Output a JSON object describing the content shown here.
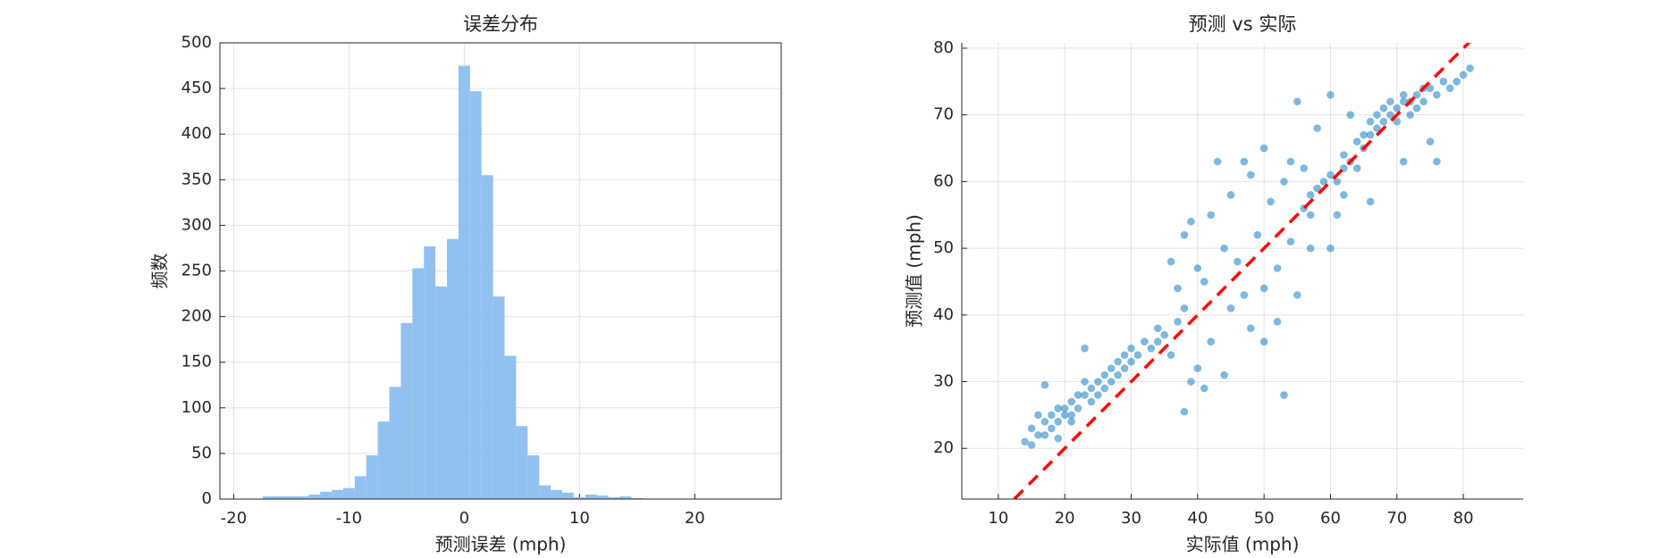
{
  "chart_data": [
    {
      "type": "histogram",
      "title": "误差分布",
      "x_label": "预测误差 (mph)",
      "y_label": "频数",
      "bins": [
        -17.5,
        -16.5,
        -15.5,
        -14.5,
        -13.5,
        -12.5,
        -11.5,
        -10.5,
        -9.5,
        -8.5,
        -7.5,
        -6.5,
        -5.5,
        -4.5,
        -3.5,
        -2.5,
        -1.5,
        -0.5,
        0.5,
        1.5,
        2.5,
        3.5,
        4.5,
        5.5,
        6.5,
        7.5,
        8.5,
        9.5,
        10.5,
        11.5,
        12.5,
        13.5,
        14.5,
        15.5
      ],
      "values": [
        3,
        3,
        3,
        3,
        5,
        8,
        10,
        12,
        25,
        48,
        85,
        123,
        193,
        253,
        277,
        233,
        285,
        475,
        447,
        355,
        222,
        157,
        80,
        48,
        15,
        10,
        7,
        2,
        5,
        4,
        2,
        3,
        1
      ],
      "color": "#92c1f0",
      "xlim": [
        -21.2,
        27.5
      ],
      "xticks": [
        -20,
        -10,
        0,
        10,
        20
      ],
      "ylim": [
        0,
        500
      ],
      "yticks": [
        0,
        50,
        100,
        150,
        200,
        250,
        300,
        350,
        400,
        450,
        500
      ],
      "grid": true
    },
    {
      "type": "scatter",
      "title": "预测 vs 实际",
      "x_label": "实际值 (mph)",
      "y_label": "预测值 (mph)",
      "series": [
        {
          "color": "#0072bd",
          "x": [
            14,
            15,
            16,
            16,
            17,
            17,
            18,
            18,
            19,
            19,
            20,
            20,
            21,
            21,
            22,
            22,
            23,
            23,
            24,
            24,
            25,
            25,
            26,
            26,
            27,
            27,
            28,
            28,
            29,
            29,
            30,
            30,
            31,
            32,
            33,
            34,
            35,
            36,
            37,
            38,
            38,
            17,
            21,
            23,
            15,
            19,
            36,
            38,
            39,
            40,
            41,
            42,
            43,
            44,
            45,
            46,
            47,
            48,
            49,
            50,
            51,
            52,
            53,
            53,
            54,
            55,
            56,
            57,
            42,
            45,
            48,
            50,
            52,
            55,
            40,
            44,
            47,
            50,
            34,
            37,
            39,
            41,
            56,
            57,
            58,
            59,
            60,
            61,
            62,
            62,
            63,
            64,
            64,
            65,
            65,
            66,
            66,
            67,
            67,
            68,
            68,
            69,
            69,
            70,
            70,
            71,
            71,
            72,
            72,
            73,
            73,
            74,
            74,
            75,
            76,
            77,
            78,
            79,
            80,
            81,
            60,
            62,
            66,
            71,
            75,
            76,
            58,
            63,
            54,
            57,
            60,
            61
          ],
          "y": [
            21,
            23,
            22,
            25,
            24,
            22,
            25,
            23,
            26,
            24,
            26,
            25,
            27,
            25,
            28,
            26,
            28,
            30,
            29,
            27,
            30,
            28,
            31,
            29,
            32,
            30,
            33,
            31,
            34,
            32,
            35,
            33,
            34,
            36,
            35,
            36,
            37,
            34,
            39,
            41,
            25.5,
            29.5,
            24,
            35,
            20.5,
            21.5,
            48,
            52,
            54,
            47,
            45,
            55,
            63,
            50,
            58,
            48,
            43,
            61,
            52,
            44,
            57,
            47,
            28,
            60,
            51,
            72,
            62,
            55,
            36,
            41,
            38,
            36,
            39,
            43,
            32,
            31,
            63,
            65,
            38,
            44,
            30,
            29,
            56,
            58,
            59,
            60,
            61,
            60,
            62,
            64,
            63,
            66,
            62,
            67,
            65,
            67,
            69,
            68,
            70,
            69,
            71,
            70,
            72,
            71,
            69,
            72,
            73,
            72,
            70,
            73,
            71,
            74,
            72,
            74,
            73,
            75,
            74,
            75,
            76,
            77,
            73,
            58,
            57,
            63,
            66,
            63,
            68,
            70,
            63,
            50,
            50,
            55
          ]
        }
      ],
      "reference_line": {
        "color": "#ff0000",
        "x": [
          12.4,
          81
        ],
        "y": [
          12.4,
          81
        ]
      },
      "xlim": [
        4.5,
        89
      ],
      "xticks": [
        10,
        20,
        30,
        40,
        50,
        60,
        70,
        80
      ],
      "ylim": [
        12.4,
        80.8
      ],
      "yticks": [
        20,
        30,
        40,
        50,
        60,
        70,
        80
      ],
      "grid": true
    }
  ]
}
